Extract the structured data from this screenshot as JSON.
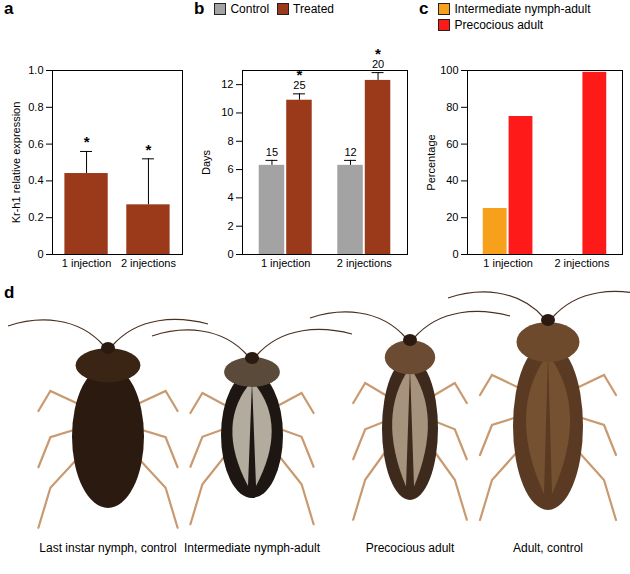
{
  "chart_data": [
    {
      "type": "bar",
      "title": "a",
      "categories": [
        "1 injection",
        "2 injections"
      ],
      "values": [
        0.44,
        0.27
      ],
      "errors": [
        0.12,
        0.25
      ],
      "significance": [
        "*",
        "*"
      ],
      "color": "#9b3a1b",
      "ylabel": "Kr-h1 relative expression",
      "ylim": [
        0,
        1
      ],
      "yticks": [
        0,
        {
          "value": 0.2,
          "label": "0.2"
        },
        {
          "value": 0.4,
          "label": "0.4"
        },
        {
          "value": 0.6,
          "label": "0.6"
        },
        {
          "value": 0.8,
          "label": "0.8"
        },
        {
          "value": 1,
          "label": "1.0"
        }
      ]
    },
    {
      "type": "bar",
      "title": "b",
      "categories": [
        "1 injection",
        "2 injections"
      ],
      "series": [
        {
          "name": "Control",
          "color": "#a3a3a3",
          "values": [
            6.3,
            6.3
          ],
          "errors": [
            0.35,
            0.35
          ],
          "n": [
            15,
            12
          ],
          "significance": [
            null,
            null
          ]
        },
        {
          "name": "Treated",
          "color": "#9b3a1b",
          "values": [
            10.9,
            12.3
          ],
          "errors": [
            0.45,
            0.55
          ],
          "n": [
            25,
            20
          ],
          "significance": [
            "*",
            "*"
          ]
        }
      ],
      "ylabel": "Days",
      "ylim": [
        0,
        13
      ],
      "yticks": [
        0,
        2,
        4,
        6,
        8,
        10,
        12
      ],
      "legend": "top-left"
    },
    {
      "type": "bar",
      "title": "c",
      "categories": [
        "1 injection",
        "2 injections"
      ],
      "series": [
        {
          "name": "Intermediate nymph-adult",
          "color": "#f7a01c",
          "values": [
            25,
            0
          ]
        },
        {
          "name": "Precocious adult",
          "color": "#ff1a1a",
          "values": [
            75,
            99
          ]
        }
      ],
      "ylabel": "Percentage",
      "ylim": [
        0,
        100
      ],
      "yticks": [
        0,
        20,
        40,
        60,
        80,
        100
      ],
      "legend": "top-left"
    }
  ],
  "photo_panel": {
    "title": "d",
    "labels": [
      "Last instar nymph, control",
      "Intermediate nymph-adult",
      "Precocious adult",
      "Adult, control"
    ]
  }
}
